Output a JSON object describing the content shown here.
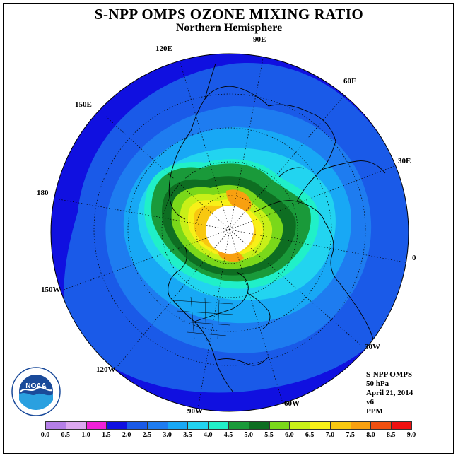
{
  "title": "S-NPP OMPS OZONE MIXING RATIO",
  "subtitle": "Northern Hemisphere",
  "longitude_labels": {
    "lon_90e": "90E",
    "lon_120e": "120E",
    "lon_60e": "60E",
    "lon_150e": "150E",
    "lon_30e": "30E",
    "lon_180": "180",
    "lon_0": "0",
    "lon_150w": "150W",
    "lon_30w": "30W",
    "lon_120w": "120W",
    "lon_60w": "60W",
    "lon_90w": "90W"
  },
  "info": {
    "instrument": "S-NPP OMPS",
    "level": "50 hPa",
    "date": "April 21, 2014",
    "version": "v6",
    "units": "PPM"
  },
  "logo_text": "NOAA",
  "colorbar": {
    "ticks": [
      "0.0",
      "0.5",
      "1.0",
      "1.5",
      "2.0",
      "2.5",
      "3.0",
      "3.5",
      "4.0",
      "4.5",
      "5.0",
      "5.5",
      "6.0",
      "6.5",
      "7.0",
      "7.5",
      "8.0",
      "8.5",
      "9.0"
    ],
    "colors": [
      "#b57fe8",
      "#dca8f0",
      "#f020d8",
      "#1010e0",
      "#1a5ae8",
      "#1e7cf0",
      "#18a8f5",
      "#22d4f0",
      "#20f0c8",
      "#1a9a3a",
      "#0e6e22",
      "#7ad81a",
      "#c8f018",
      "#f8f018",
      "#f8c810",
      "#f8a010",
      "#f05010",
      "#f01010",
      "#8a5a3a"
    ]
  }
}
